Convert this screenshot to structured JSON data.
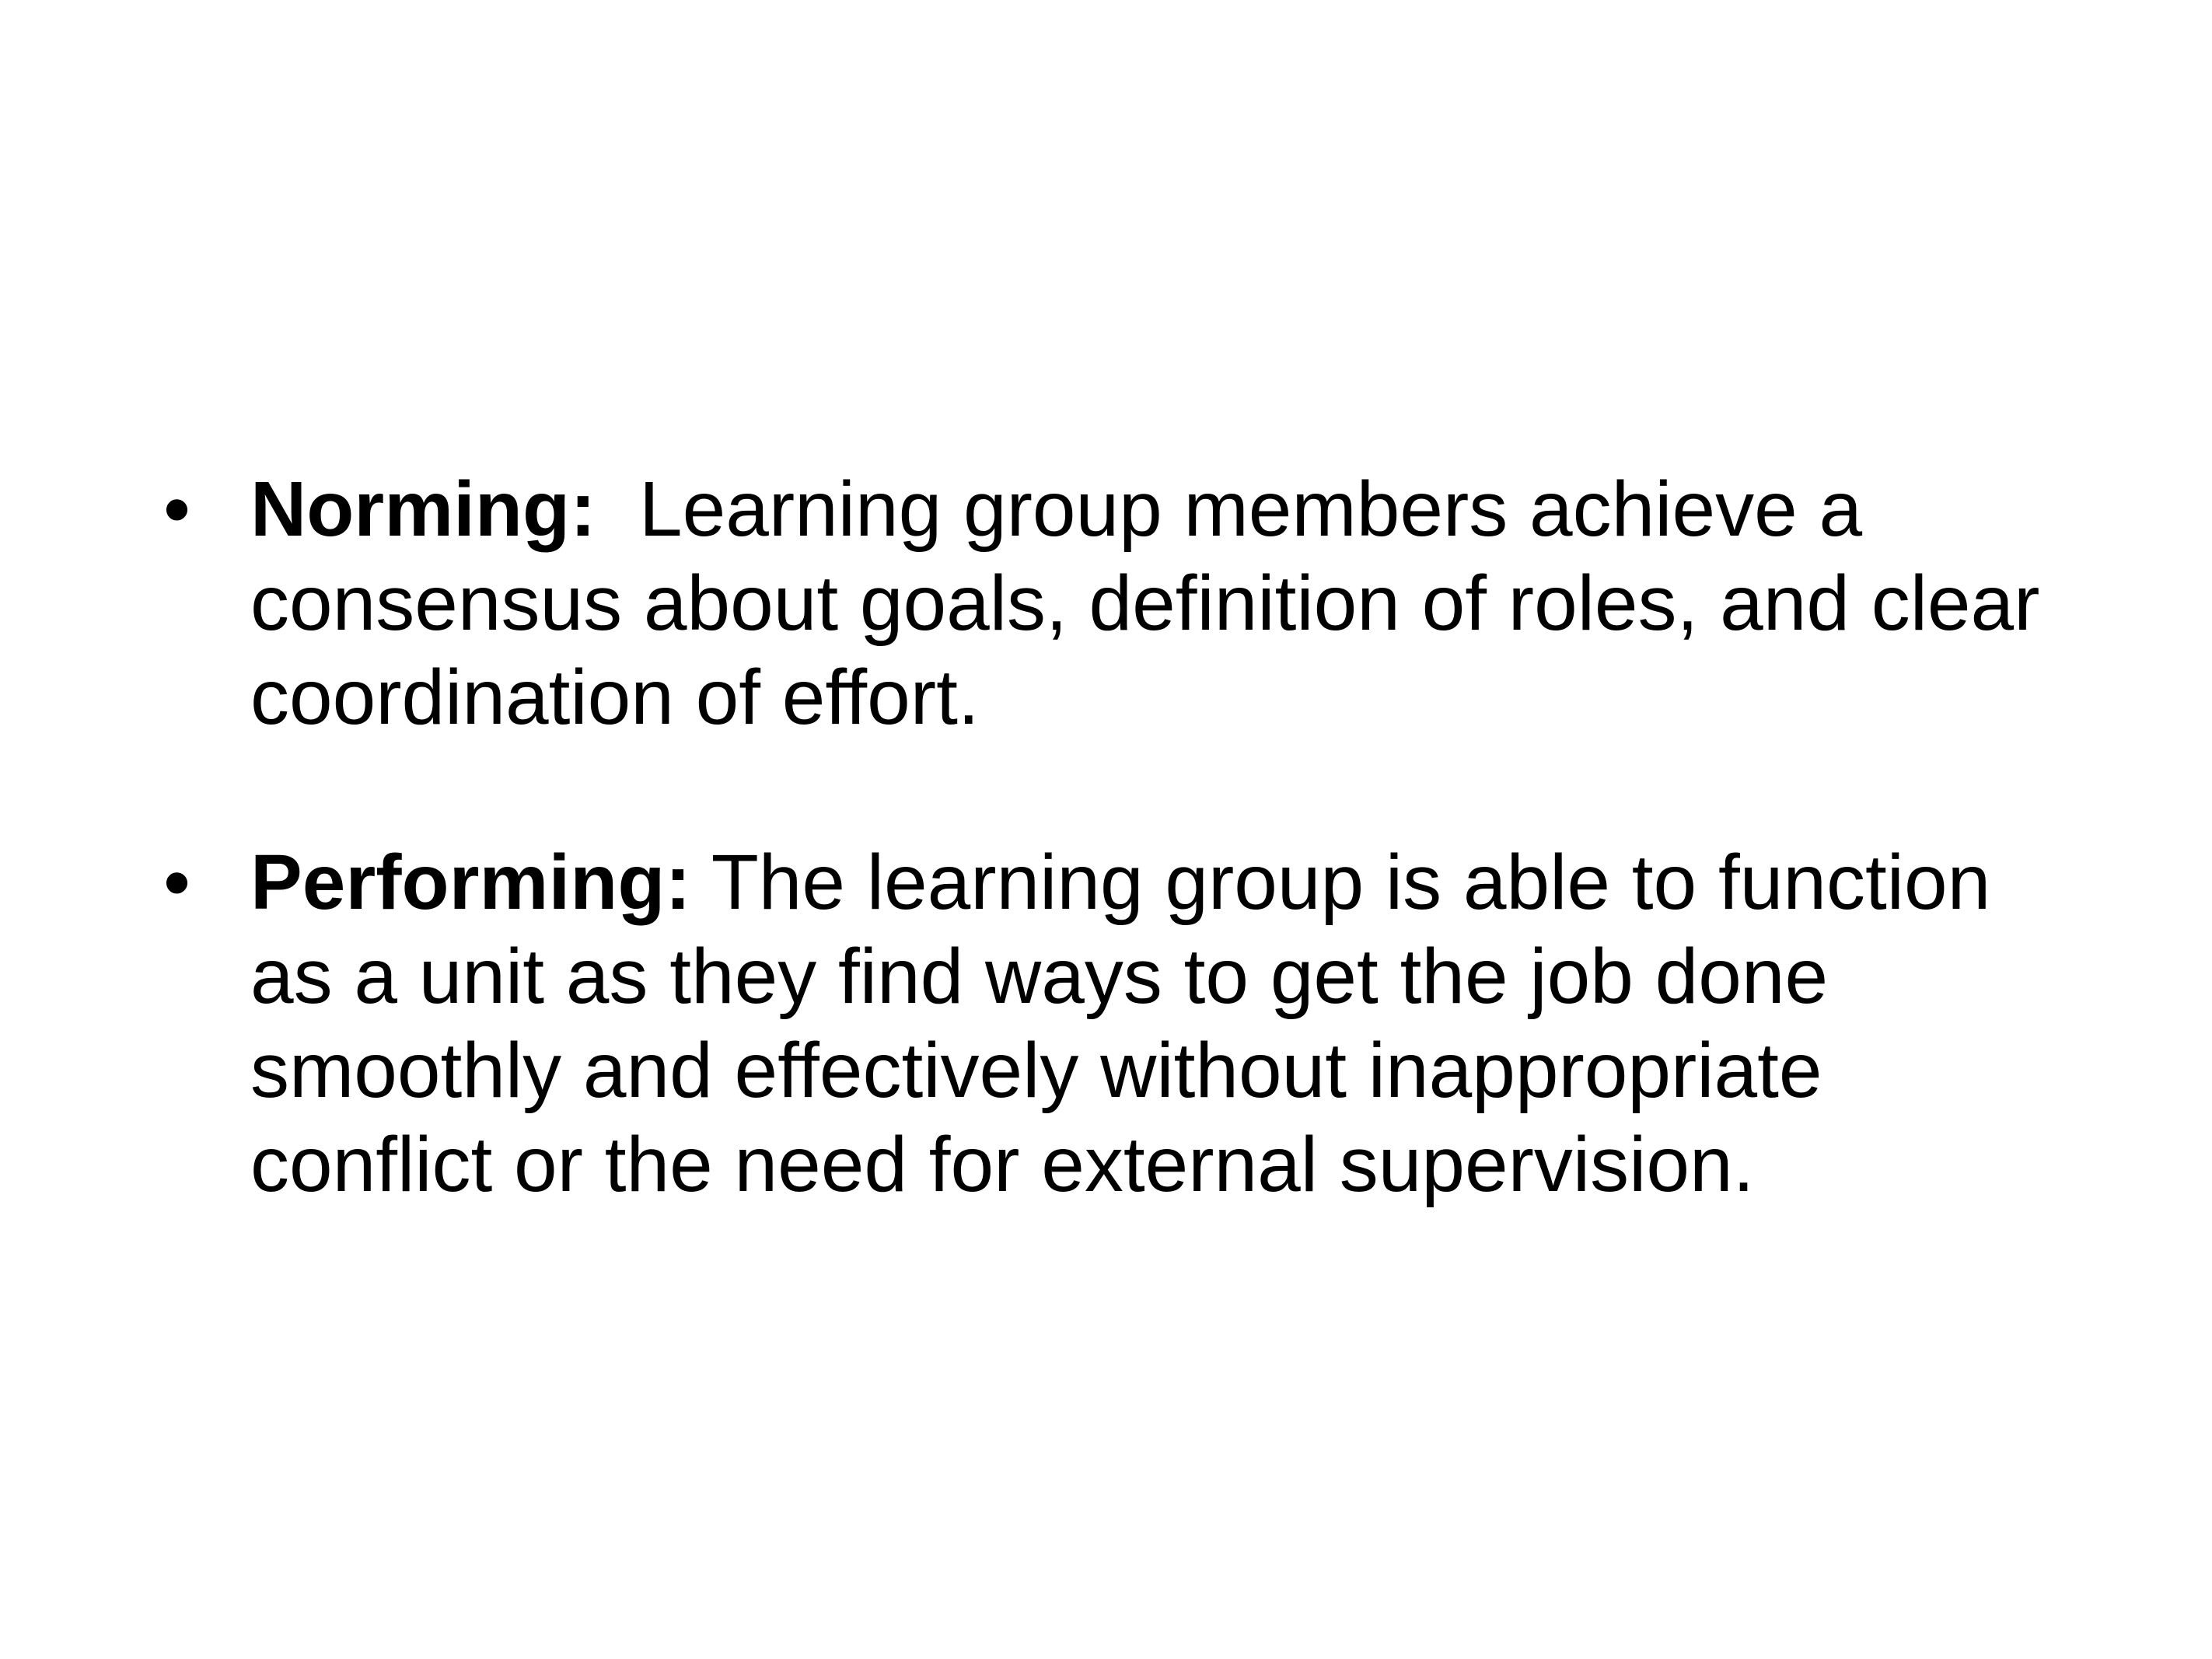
{
  "slide": {
    "bullets": [
      {
        "marker": "•",
        "term": "Norming:",
        "separator": "  ",
        "text": "Learning group members achieve a consensus about goals, definition of roles, and clear coordination of effort."
      },
      {
        "marker": "•",
        "term": "Performing:",
        "separator": " ",
        "text": "The learning group is able to function as a unit as they find ways to get the job done smoothly and effectively without inappropriate conflict or the need for external supervision."
      }
    ]
  }
}
